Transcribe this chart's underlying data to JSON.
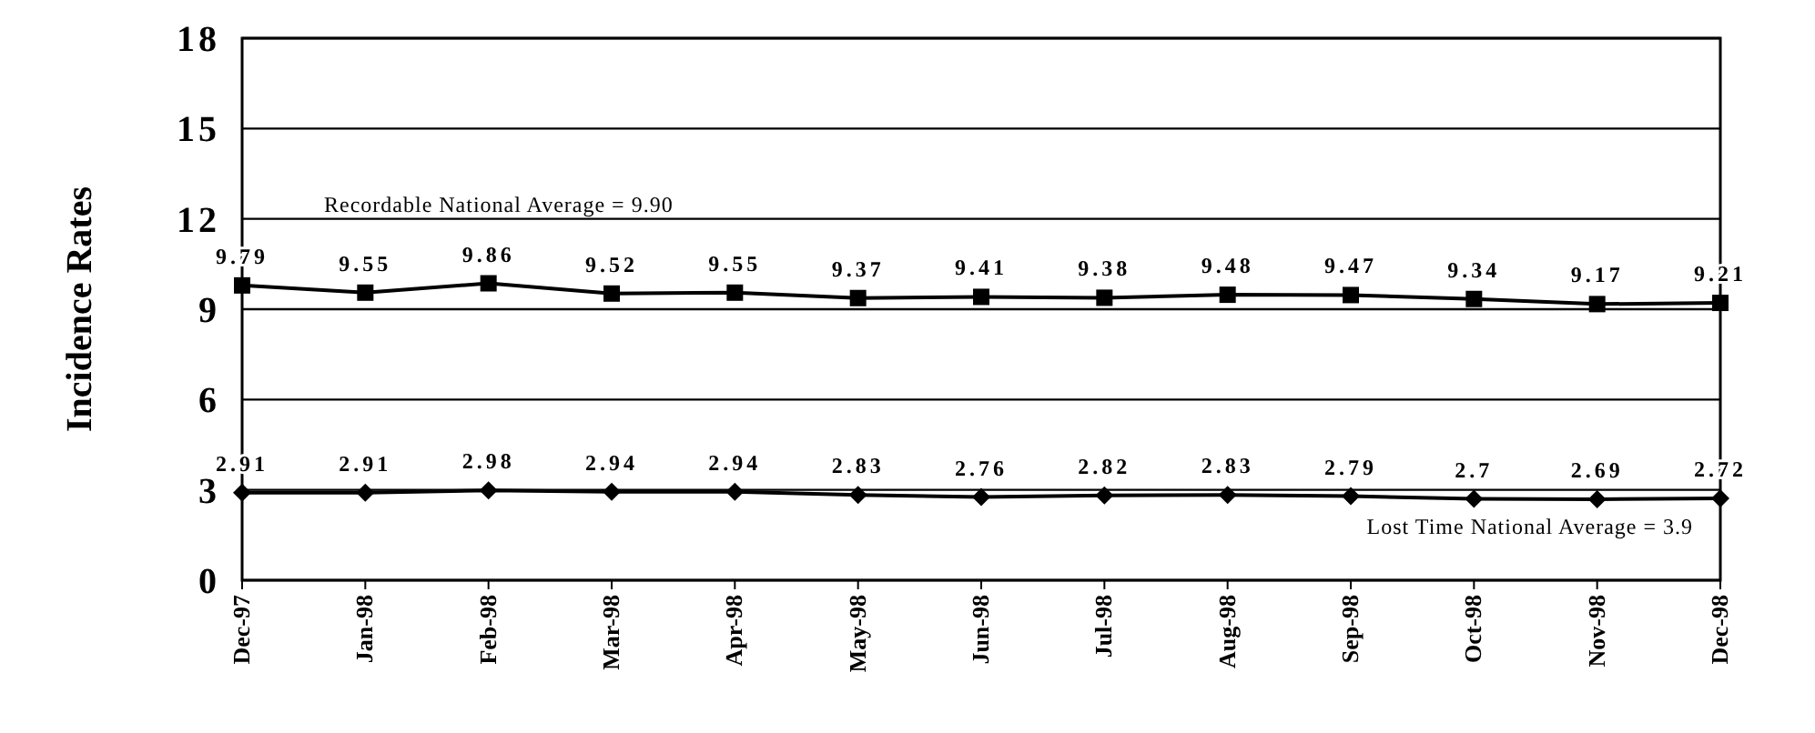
{
  "chart_data": {
    "type": "line",
    "ylabel": "Incidence Rates",
    "categories": [
      "Dec-97",
      "Jan-98",
      "Feb-98",
      "Mar-98",
      "Apr-98",
      "May-98",
      "Jun-98",
      "Jul-98",
      "Aug-98",
      "Sep-98",
      "Oct-98",
      "Nov-98",
      "Dec-98"
    ],
    "series": [
      {
        "color": "#000000",
        "marker": "square",
        "values": [
          9.79,
          9.55,
          9.86,
          9.52,
          9.55,
          9.37,
          9.41,
          9.38,
          9.48,
          9.47,
          9.34,
          9.17,
          9.21
        ]
      },
      {
        "color": "#000000",
        "marker": "diamond",
        "values": [
          2.91,
          2.91,
          2.98,
          2.94,
          2.94,
          2.83,
          2.76,
          2.82,
          2.83,
          2.79,
          2.7,
          2.69,
          2.72
        ]
      }
    ],
    "ylim": [
      0,
      18
    ],
    "yticks": [
      0,
      3,
      6,
      9,
      12,
      15,
      18
    ],
    "grid": "y",
    "data_labels": true,
    "annotations": [
      "Recordable National Average = 9.90",
      "Lost Time National Average = 3.9"
    ]
  }
}
